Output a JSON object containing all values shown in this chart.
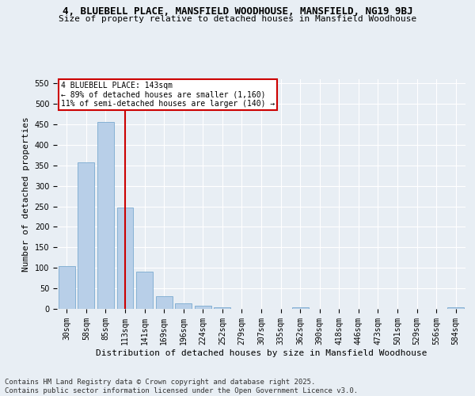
{
  "title1": "4, BLUEBELL PLACE, MANSFIELD WOODHOUSE, MANSFIELD, NG19 9BJ",
  "title2": "Size of property relative to detached houses in Mansfield Woodhouse",
  "xlabel": "Distribution of detached houses by size in Mansfield Woodhouse",
  "ylabel": "Number of detached properties",
  "categories": [
    "30sqm",
    "58sqm",
    "85sqm",
    "113sqm",
    "141sqm",
    "169sqm",
    "196sqm",
    "224sqm",
    "252sqm",
    "279sqm",
    "307sqm",
    "335sqm",
    "362sqm",
    "390sqm",
    "418sqm",
    "446sqm",
    "473sqm",
    "501sqm",
    "529sqm",
    "556sqm",
    "584sqm"
  ],
  "values": [
    105,
    357,
    455,
    247,
    91,
    31,
    13,
    8,
    4,
    0,
    0,
    0,
    4,
    0,
    0,
    0,
    0,
    0,
    0,
    0,
    4
  ],
  "bar_color": "#b8cfe8",
  "bar_edge_color": "#7aaad0",
  "vline_x_index": 3,
  "vline_color": "#cc0000",
  "annotation_text": "4 BLUEBELL PLACE: 143sqm\n← 89% of detached houses are smaller (1,160)\n11% of semi-detached houses are larger (140) →",
  "annotation_box_color": "#ffffff",
  "annotation_border_color": "#cc0000",
  "ylim": [
    0,
    560
  ],
  "yticks": [
    0,
    50,
    100,
    150,
    200,
    250,
    300,
    350,
    400,
    450,
    500,
    550
  ],
  "footnote": "Contains HM Land Registry data © Crown copyright and database right 2025.\nContains public sector information licensed under the Open Government Licence v3.0.",
  "bg_color": "#e8eef4",
  "plot_bg_color": "#e8eef4",
  "title1_fontsize": 9,
  "title2_fontsize": 8,
  "xlabel_fontsize": 8,
  "ylabel_fontsize": 8,
  "tick_fontsize": 7,
  "annot_fontsize": 7,
  "footnote_fontsize": 6.5,
  "grid_color": "#ffffff"
}
